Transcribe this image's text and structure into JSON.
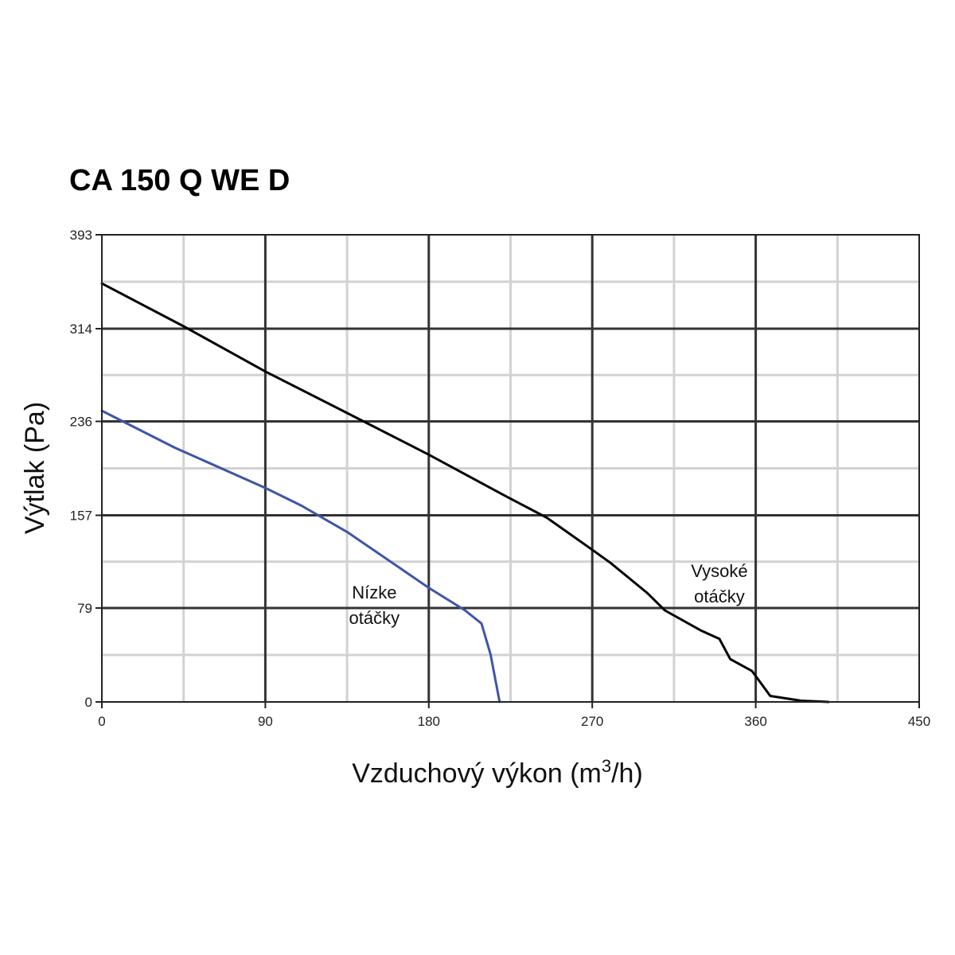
{
  "chart_data": {
    "type": "line",
    "title": "CA 150 Q WE D",
    "xlabel": {
      "base": "Vzduchový výkon (m",
      "sup": "3",
      "tail": "/h)"
    },
    "ylabel": "Výtlak (Pa)",
    "xlim": [
      0,
      450
    ],
    "ylim": [
      0,
      393
    ],
    "x_ticks": [
      "0",
      "90",
      "180",
      "270",
      "360",
      "450"
    ],
    "y_ticks": [
      "0",
      "79",
      "157",
      "236",
      "314",
      "393"
    ],
    "x_tick_values": [
      0,
      90,
      180,
      270,
      360,
      450
    ],
    "y_tick_values": [
      0,
      79,
      157,
      236,
      314,
      393
    ],
    "grid": true,
    "series": [
      {
        "name": "Vysoké otáčky",
        "color": "#000000",
        "points": [
          [
            0,
            352
          ],
          [
            45,
            316
          ],
          [
            90,
            278
          ],
          [
            130,
            247
          ],
          [
            180,
            208
          ],
          [
            220,
            175
          ],
          [
            245,
            155
          ],
          [
            270,
            128
          ],
          [
            280,
            117
          ],
          [
            300,
            92
          ],
          [
            310,
            77
          ],
          [
            330,
            60
          ],
          [
            340,
            53
          ],
          [
            346,
            36
          ],
          [
            358,
            26
          ],
          [
            368,
            5
          ],
          [
            385,
            1
          ],
          [
            400,
            0
          ]
        ]
      },
      {
        "name": "Nízke otáčky",
        "color": "#3f55a6",
        "points": [
          [
            0,
            245
          ],
          [
            40,
            214
          ],
          [
            90,
            180
          ],
          [
            110,
            165
          ],
          [
            135,
            143
          ],
          [
            180,
            96
          ],
          [
            200,
            77
          ],
          [
            209,
            66
          ],
          [
            214,
            40
          ],
          [
            219,
            0
          ]
        ]
      }
    ],
    "annotations": [
      {
        "lines": [
          "Vysoké",
          "otáčky"
        ],
        "at": [
          340,
          105
        ]
      },
      {
        "lines": [
          "Nízke",
          "otáčky"
        ],
        "at": [
          150,
          87
        ]
      }
    ]
  }
}
